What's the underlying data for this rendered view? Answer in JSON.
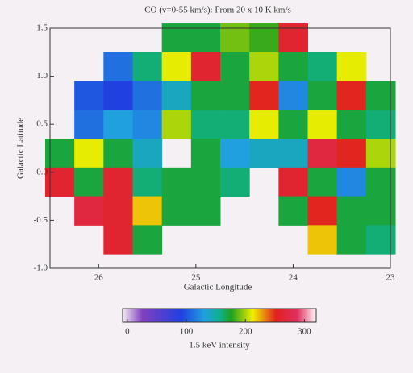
{
  "chart_data": {
    "type": "heatmap",
    "title": "CO (v=0-55 km/s): From 20 x 10 K km/s",
    "x_label": "Galactic Longitude",
    "y_label": "Galactic Latitude",
    "x": [
      26.4,
      26.1,
      25.8,
      25.5,
      25.2,
      24.9,
      24.6,
      24.3,
      24.0,
      23.7,
      23.4,
      23.1
    ],
    "y": [
      1.4,
      1.1,
      0.8,
      0.5,
      0.2,
      -0.1,
      -0.4,
      -0.7
    ],
    "z": [
      [
        null,
        null,
        null,
        null,
        170,
        170,
        190,
        180,
        260,
        null,
        null,
        null
      ],
      [
        null,
        null,
        110,
        160,
        210,
        260,
        170,
        200,
        170,
        160,
        210,
        null
      ],
      [
        null,
        100,
        90,
        110,
        140,
        170,
        170,
        250,
        120,
        170,
        250,
        170
      ],
      [
        null,
        110,
        130,
        120,
        200,
        160,
        160,
        210,
        170,
        210,
        170,
        160
      ],
      [
        170,
        210,
        170,
        140,
        null,
        170,
        130,
        140,
        140,
        270,
        250,
        200
      ],
      [
        260,
        170,
        260,
        160,
        170,
        170,
        160,
        null,
        260,
        170,
        120,
        170
      ],
      [
        null,
        270,
        260,
        220,
        170,
        170,
        null,
        null,
        170,
        250,
        170,
        170
      ],
      [
        null,
        null,
        260,
        170,
        null,
        null,
        null,
        null,
        null,
        220,
        170,
        160
      ]
    ],
    "xlim": [
      26.5,
      23.0
    ],
    "xticks": [
      26,
      25,
      24,
      23
    ],
    "ylim": [
      -1.0,
      1.5
    ],
    "yticks": [
      {
        "value": -1.0,
        "label": "-1.0"
      },
      {
        "value": -0.5,
        "label": "-0.5"
      },
      {
        "value": 0.0,
        "label": "0.0"
      },
      {
        "value": 0.5,
        "label": "0.5"
      },
      {
        "value": 1.0,
        "label": "1.0"
      },
      {
        "value": 1.5,
        "label": "1.5"
      }
    ],
    "colorbar": {
      "label": "1.5 keV intensity",
      "lim": [
        -8,
        320
      ],
      "ticks": [
        0,
        100,
        200,
        300
      ]
    }
  }
}
